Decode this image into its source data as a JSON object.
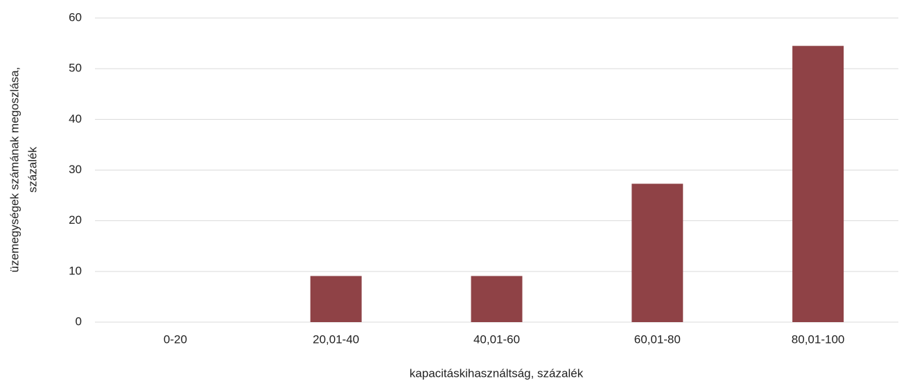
{
  "chart_data": {
    "type": "bar",
    "categories": [
      "0-20",
      "20,01-40",
      "40,01-60",
      "60,01-80",
      "80,01-100"
    ],
    "values": [
      0,
      9.1,
      9.1,
      27.3,
      54.5
    ],
    "color": "#8f4246",
    "ylim": [
      0,
      60
    ],
    "yticks": [
      0,
      10,
      20,
      30,
      40,
      50,
      60
    ],
    "grid": true,
    "xlabel": "kapacitáskihasználtság, százalék",
    "ylabel": [
      "üzemegységek számának megoszlása,",
      "százalék"
    ]
  }
}
